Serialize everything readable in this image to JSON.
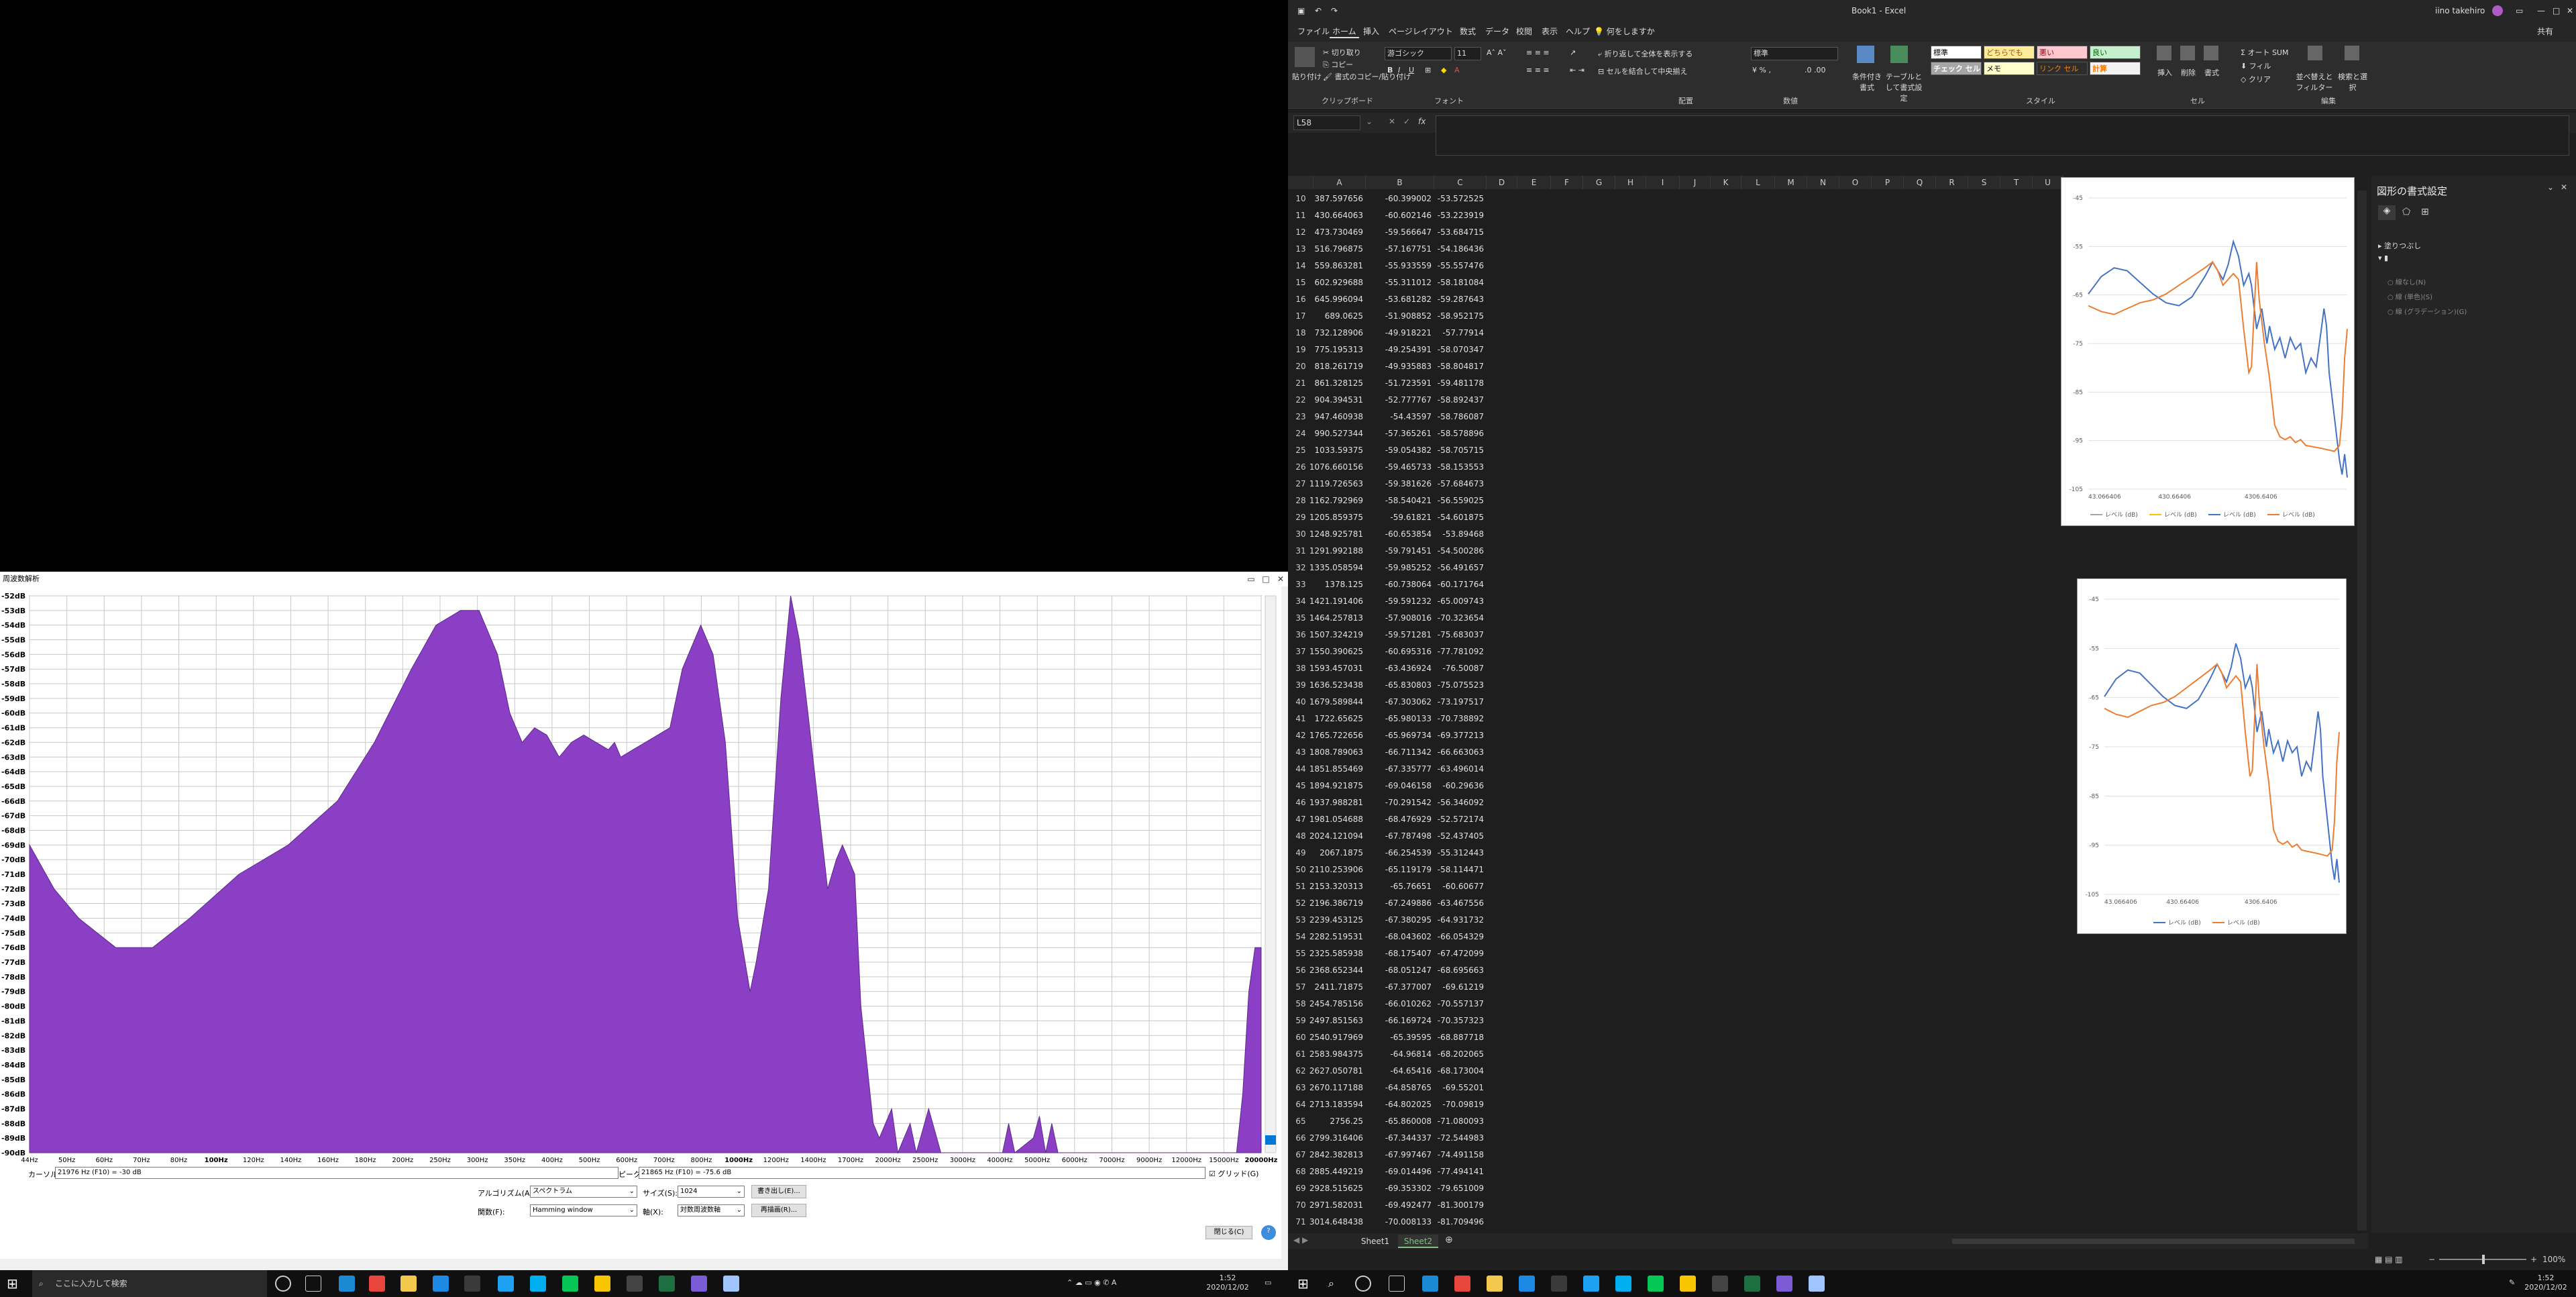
{
  "spectrum": {
    "title": "周波数解析",
    "y_labels": [
      "-52dB",
      "-53dB",
      "-54dB",
      "-55dB",
      "-56dB",
      "-57dB",
      "-58dB",
      "-59dB",
      "-60dB",
      "-61dB",
      "-62dB",
      "-63dB",
      "-64dB",
      "-65dB",
      "-66dB",
      "-67dB",
      "-68dB",
      "-69dB",
      "-70dB",
      "-71dB",
      "-72dB",
      "-73dB",
      "-74dB",
      "-75dB",
      "-76dB",
      "-77dB",
      "-78dB",
      "-79dB",
      "-80dB",
      "-81dB",
      "-82dB",
      "-83dB",
      "-84dB",
      "-85dB",
      "-86dB",
      "-87dB",
      "-88dB",
      "-89dB",
      "-90dB"
    ],
    "x_labels": [
      "44Hz",
      "50Hz",
      "60Hz",
      "70Hz",
      "80Hz",
      "100Hz",
      "120Hz",
      "140Hz",
      "160Hz",
      "180Hz",
      "200Hz",
      "250Hz",
      "300Hz",
      "350Hz",
      "400Hz",
      "500Hz",
      "600Hz",
      "700Hz",
      "800Hz",
      "1000Hz",
      "1200Hz",
      "1400Hz",
      "1700Hz",
      "2000Hz",
      "2500Hz",
      "3000Hz",
      "4000Hz",
      "5000Hz",
      "6000Hz",
      "7000Hz",
      "9000Hz",
      "12000Hz",
      "15000Hz",
      "20000Hz"
    ],
    "cursor_label": "カーソル:",
    "cursor_value": "21976 Hz (F10) = -30 dB",
    "peak_label": "ピーク:",
    "peak_value": "21865 Hz (F10) = -75.6 dB",
    "grid_label": "グリッド(G)",
    "algorithm_label": "アルゴリズム(A):",
    "algorithm_value": "スペクトラム",
    "size_label": "サイズ(S):",
    "size_value": "1024",
    "export_button": "書き出し(E)...",
    "function_label": "関数(F):",
    "function_value": "Hamming window",
    "axis_label": "軸(X):",
    "axis_value": "対数周波数軸",
    "replot_button": "再描画(R)...",
    "close_button": "閉じる(C)",
    "help_button": "?",
    "fill_color": "#8a3fc4"
  },
  "excel": {
    "title": "Book1  -  Excel",
    "user": "iino takehiro",
    "menu": [
      "ファイル",
      "ホーム",
      "挿入",
      "ページレイアウト",
      "数式",
      "データ",
      "校閲",
      "表示",
      "ヘルプ",
      "何をしますか"
    ],
    "active_menu": "ホーム",
    "ribbon": {
      "paste": "貼り付け",
      "cut": "切り取り",
      "copy": "コピー",
      "format_painter": "書式のコピー/貼り付け",
      "clipboard": "クリップボード",
      "font_name": "游ゴシック",
      "font_size": "11",
      "font_group": "フォント",
      "wrap": "折り返して全体を表示する",
      "merge": "セルを結合して中央揃え",
      "align_group": "配置",
      "number_format": "標準",
      "number_group": "数値",
      "cond_format": "条件付き書式",
      "table_format": "テーブルとして書式設定",
      "styles": [
        "標準",
        "どちらでもな...",
        "悪い",
        "良い",
        "チェック セル",
        "メモ",
        "リンク セル",
        "計算"
      ],
      "style_group": "スタイル",
      "insert": "挿入",
      "delete": "削除",
      "format": "書式",
      "cells_group": "セル",
      "autosum": "オート SUM",
      "fill": "フィル",
      "clear": "クリア",
      "sort": "並べ替えとフィルター",
      "find": "検索と選択",
      "edit_group": "編集",
      "share": "共有"
    },
    "name_box": "L58",
    "columns": [
      "A",
      "B",
      "C",
      "D",
      "E",
      "F",
      "G",
      "H",
      "I",
      "J",
      "K",
      "L",
      "M",
      "N",
      "O",
      "P",
      "Q",
      "R",
      "S",
      "T",
      "U"
    ],
    "rows": [
      [
        "10",
        "387.597656",
        "-60.399002",
        "-53.572525"
      ],
      [
        "11",
        "430.664063",
        "-60.602146",
        "-53.223919"
      ],
      [
        "12",
        "473.730469",
        "-59.566647",
        "-53.684715"
      ],
      [
        "13",
        "516.796875",
        "-57.167751",
        "-54.186436"
      ],
      [
        "14",
        "559.863281",
        "-55.933559",
        "-55.557476"
      ],
      [
        "15",
        "602.929688",
        "-55.311012",
        "-58.181084"
      ],
      [
        "16",
        "645.996094",
        "-53.681282",
        "-59.287643"
      ],
      [
        "17",
        "689.0625",
        "-51.908852",
        "-58.952175"
      ],
      [
        "18",
        "732.128906",
        "-49.918221",
        "-57.77914"
      ],
      [
        "19",
        "775.195313",
        "-49.254391",
        "-58.070347"
      ],
      [
        "20",
        "818.261719",
        "-49.935883",
        "-58.804817"
      ],
      [
        "21",
        "861.328125",
        "-51.723591",
        "-59.481178"
      ],
      [
        "22",
        "904.394531",
        "-52.777767",
        "-58.892437"
      ],
      [
        "23",
        "947.460938",
        "-54.43597",
        "-58.786087"
      ],
      [
        "24",
        "990.527344",
        "-57.365261",
        "-58.578896"
      ],
      [
        "25",
        "1033.59375",
        "-59.054382",
        "-58.705715"
      ],
      [
        "26",
        "1076.660156",
        "-59.465733",
        "-58.153553"
      ],
      [
        "27",
        "1119.726563",
        "-59.381626",
        "-57.684673"
      ],
      [
        "28",
        "1162.792969",
        "-58.540421",
        "-56.559025"
      ],
      [
        "29",
        "1205.859375",
        "-59.61821",
        "-54.601875"
      ],
      [
        "30",
        "1248.925781",
        "-60.653854",
        "-53.89468"
      ],
      [
        "31",
        "1291.992188",
        "-59.791451",
        "-54.500286"
      ],
      [
        "32",
        "1335.058594",
        "-59.985252",
        "-56.491657"
      ],
      [
        "33",
        "1378.125",
        "-60.738064",
        "-60.171764"
      ],
      [
        "34",
        "1421.191406",
        "-59.591232",
        "-65.009743"
      ],
      [
        "35",
        "1464.257813",
        "-57.908016",
        "-70.323654"
      ],
      [
        "36",
        "1507.324219",
        "-59.571281",
        "-75.683037"
      ],
      [
        "37",
        "1550.390625",
        "-60.695316",
        "-77.781092"
      ],
      [
        "38",
        "1593.457031",
        "-63.436924",
        "-76.50087"
      ],
      [
        "39",
        "1636.523438",
        "-65.830803",
        "-75.075523"
      ],
      [
        "40",
        "1679.589844",
        "-67.303062",
        "-73.197517"
      ],
      [
        "41",
        "1722.65625",
        "-65.980133",
        "-70.738892"
      ],
      [
        "42",
        "1765.722656",
        "-65.969734",
        "-69.377213"
      ],
      [
        "43",
        "1808.789063",
        "-66.711342",
        "-66.663063"
      ],
      [
        "44",
        "1851.855469",
        "-67.335777",
        "-63.496014"
      ],
      [
        "45",
        "1894.921875",
        "-69.046158",
        "-60.29636"
      ],
      [
        "46",
        "1937.988281",
        "-70.291542",
        "-56.346092"
      ],
      [
        "47",
        "1981.054688",
        "-68.476929",
        "-52.572174"
      ],
      [
        "48",
        "2024.121094",
        "-67.787498",
        "-52.437405"
      ],
      [
        "49",
        "2067.1875",
        "-66.254539",
        "-55.312443"
      ],
      [
        "50",
        "2110.253906",
        "-65.119179",
        "-58.114471"
      ],
      [
        "51",
        "2153.320313",
        "-65.76651",
        "-60.60677"
      ],
      [
        "52",
        "2196.386719",
        "-67.249886",
        "-63.467556"
      ],
      [
        "53",
        "2239.453125",
        "-67.380295",
        "-64.931732"
      ],
      [
        "54",
        "2282.519531",
        "-68.043602",
        "-66.054329"
      ],
      [
        "55",
        "2325.585938",
        "-68.175407",
        "-67.472099"
      ],
      [
        "56",
        "2368.652344",
        "-68.051247",
        "-68.695663"
      ],
      [
        "57",
        "2411.71875",
        "-67.377007",
        "-69.61219"
      ],
      [
        "58",
        "2454.785156",
        "-66.010262",
        "-70.557137"
      ],
      [
        "59",
        "2497.851563",
        "-66.169724",
        "-70.357323"
      ],
      [
        "60",
        "2540.917969",
        "-65.39595",
        "-68.887718"
      ],
      [
        "61",
        "2583.984375",
        "-64.96814",
        "-68.202065"
      ],
      [
        "62",
        "2627.050781",
        "-64.65416",
        "-68.173004"
      ],
      [
        "63",
        "2670.117188",
        "-64.858765",
        "-69.55201"
      ],
      [
        "64",
        "2713.183594",
        "-64.802025",
        "-70.09819"
      ],
      [
        "65",
        "2756.25",
        "-65.860008",
        "-71.080093"
      ],
      [
        "66",
        "2799.316406",
        "-67.344337",
        "-72.544983"
      ],
      [
        "67",
        "2842.382813",
        "-67.997467",
        "-74.491158"
      ],
      [
        "68",
        "2885.449219",
        "-69.014496",
        "-77.494141"
      ],
      [
        "69",
        "2928.515625",
        "-69.353302",
        "-79.651009"
      ],
      [
        "70",
        "2971.582031",
        "-69.492477",
        "-81.300179"
      ],
      [
        "71",
        "3014.648438",
        "-70.008133",
        "-81.709496"
      ]
    ],
    "chart1": {
      "y_ticks": [
        "-45",
        "-55",
        "-65",
        "-75",
        "-85",
        "-95",
        "-105"
      ],
      "x_ticks": [
        "43.066406",
        "430.66406",
        "4306.6406"
      ],
      "legend": [
        "レベル (dB)",
        "レベル (dB)",
        "レベル (dB)",
        "レベル (dB)"
      ],
      "legend_colors": [
        "#a5a5a5",
        "#ffc000",
        "#4472c4",
        "#ed7d31"
      ]
    },
    "chart2": {
      "y_ticks": [
        "-45",
        "-55",
        "-65",
        "-75",
        "-85",
        "-95",
        "-105"
      ],
      "x_ticks": [
        "43.066406",
        "430.66406",
        "4306.6406"
      ],
      "legend": [
        "レベル (dB)",
        "レベル (dB)"
      ],
      "legend_colors": [
        "#4472c4",
        "#ed7d31"
      ]
    },
    "pane": {
      "title": "図形の書式設定",
      "section": "塗りつぶし",
      "options": [
        "線なし(N)",
        "線 (単色)(S)",
        "線 (グラデーション)(G)"
      ]
    },
    "sheets": [
      "Sheet1",
      "Sheet2"
    ],
    "active_sheet": "Sheet2",
    "zoom": "100%"
  },
  "taskbar_left": {
    "search": "ここに入力して検索",
    "time": "1:52",
    "date": "2020/12/02"
  },
  "taskbar_right": {
    "time": "1:52",
    "date": "2020/12/02"
  }
}
